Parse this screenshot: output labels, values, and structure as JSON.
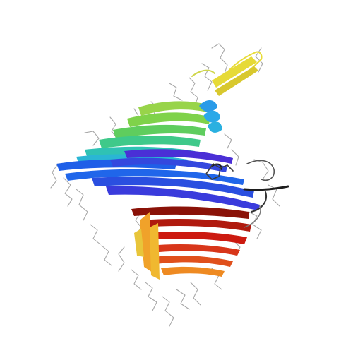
{
  "image": {
    "subject": "protein-ribbon-structure",
    "background": "#ffffff",
    "coloring": "rainbow-n-to-c-terminus",
    "palette": {
      "blue": "#1f4fe0",
      "deep_blue": "#3a2bd8",
      "sky": "#2a9be8",
      "cyan": "#27c6d8",
      "teal": "#3cc9a8",
      "green": "#7fd24a",
      "yellow": "#e8dc3a",
      "gold": "#f0b830",
      "orange": "#ee8a22",
      "red_orange": "#e0501c",
      "red": "#cc1a10",
      "dark_red": "#8a1208",
      "side_chain": "#9a9a9a",
      "dark": "#2a2a2a"
    }
  }
}
